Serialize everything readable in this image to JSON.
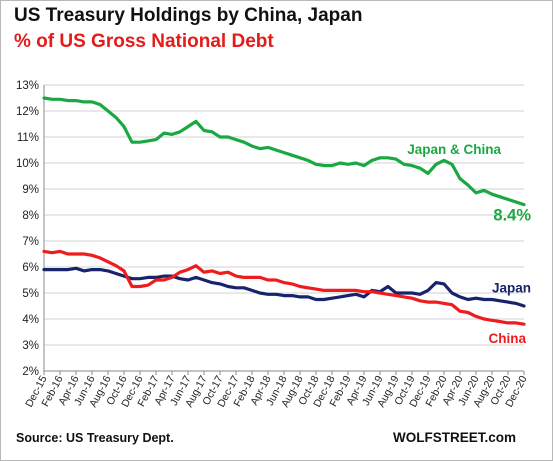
{
  "header": {
    "title": "US Treasury Holdings by China, Japan",
    "subtitle": "% of US Gross National Debt",
    "subtitle_color": "#e31b1b"
  },
  "footer": {
    "source": "Source: US Treasury Dept.",
    "credit": "WOLFSTREET.com"
  },
  "chart_data": {
    "type": "line",
    "title": "US Treasury Holdings by China, Japan",
    "subtitle": "% of US Gross National Debt",
    "xlabel": "",
    "ylabel": "",
    "grid": true,
    "ylim": [
      2,
      13
    ],
    "y_ticks": [
      "2%",
      "3%",
      "4%",
      "5%",
      "6%",
      "7%",
      "8%",
      "9%",
      "10%",
      "11%",
      "12%",
      "13%"
    ],
    "x_tick_labels": [
      "Dec-15",
      "Feb-16",
      "Apr-16",
      "Jun-16",
      "Aug-16",
      "Oct-16",
      "Dec-16",
      "Feb-17",
      "Apr-17",
      "Jun-17",
      "Aug-17",
      "Oct-17",
      "Dec-17",
      "Feb-18",
      "Apr-18",
      "Jun-18",
      "Aug-18",
      "Oct-18",
      "Dec-18",
      "Feb-19",
      "Apr-19",
      "Jun-19",
      "Aug-19",
      "Oct-19",
      "Dec-19",
      "Feb-20",
      "Apr-20",
      "Jun-20",
      "Aug-20",
      "Oct-20",
      "Dec-20"
    ],
    "x_start": "Dec-15",
    "x_end": "Dec-20",
    "series": [
      {
        "name": "Japan & China",
        "color": "#1aa843",
        "end_label": "8.4%",
        "values": [
          12.5,
          12.45,
          12.45,
          12.4,
          12.4,
          12.35,
          12.35,
          12.25,
          12.0,
          11.75,
          11.4,
          10.8,
          10.8,
          10.85,
          10.9,
          11.15,
          11.1,
          11.2,
          11.4,
          11.6,
          11.25,
          11.2,
          11.0,
          11.0,
          10.9,
          10.8,
          10.65,
          10.55,
          10.6,
          10.5,
          10.4,
          10.3,
          10.2,
          10.1,
          9.95,
          9.9,
          9.9,
          10.0,
          9.95,
          10.0,
          9.9,
          10.1,
          10.2,
          10.2,
          10.15,
          9.95,
          9.9,
          9.8,
          9.6,
          9.95,
          10.1,
          9.95,
          9.4,
          9.15,
          8.85,
          8.95,
          8.8,
          8.7,
          8.6,
          8.5,
          8.4
        ]
      },
      {
        "name": "Japan",
        "color": "#17236b",
        "values": [
          5.9,
          5.9,
          5.9,
          5.9,
          5.95,
          5.85,
          5.9,
          5.9,
          5.85,
          5.75,
          5.65,
          5.55,
          5.55,
          5.6,
          5.6,
          5.65,
          5.65,
          5.55,
          5.5,
          5.6,
          5.5,
          5.4,
          5.35,
          5.25,
          5.2,
          5.2,
          5.1,
          5.0,
          4.95,
          4.95,
          4.9,
          4.9,
          4.85,
          4.85,
          4.75,
          4.75,
          4.8,
          4.85,
          4.9,
          4.95,
          4.85,
          5.1,
          5.05,
          5.25,
          5.0,
          5.0,
          5.0,
          4.95,
          5.1,
          5.4,
          5.35,
          5.0,
          4.85,
          4.75,
          4.8,
          4.75,
          4.75,
          4.7,
          4.65,
          4.6,
          4.5
        ]
      },
      {
        "name": "China",
        "color": "#ee1c1c",
        "values": [
          6.6,
          6.55,
          6.6,
          6.5,
          6.5,
          6.5,
          6.45,
          6.35,
          6.2,
          6.05,
          5.85,
          5.25,
          5.25,
          5.3,
          5.5,
          5.5,
          5.6,
          5.8,
          5.9,
          6.05,
          5.8,
          5.85,
          5.75,
          5.8,
          5.65,
          5.6,
          5.6,
          5.6,
          5.5,
          5.5,
          5.4,
          5.35,
          5.25,
          5.2,
          5.15,
          5.1,
          5.1,
          5.1,
          5.1,
          5.1,
          5.05,
          5.05,
          5.0,
          4.95,
          4.9,
          4.85,
          4.8,
          4.7,
          4.65,
          4.65,
          4.6,
          4.55,
          4.3,
          4.25,
          4.1,
          4.0,
          3.95,
          3.9,
          3.85,
          3.85,
          3.8
        ]
      }
    ]
  }
}
